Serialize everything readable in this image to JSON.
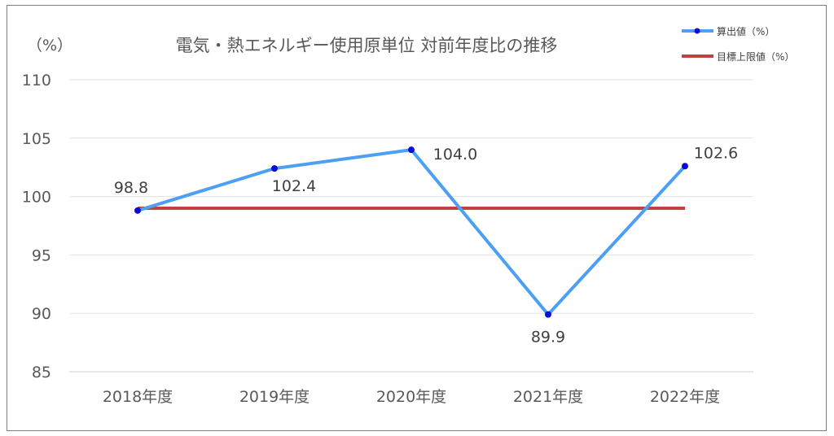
{
  "chart_data": {
    "type": "line",
    "title": "電気・熱エネルギー使用原単位 対前年度比の推移",
    "ylabel": "（%）",
    "categories": [
      "2018年度",
      "2019年度",
      "2020年度",
      "2021年度",
      "2022年度"
    ],
    "series": [
      {
        "name": "算出値（%）",
        "values": [
          98.8,
          102.4,
          104.0,
          89.9,
          102.6
        ],
        "labels": [
          "98.8",
          "102.4",
          "104.0",
          "89.9",
          "102.6"
        ],
        "color": "#4c9ff2",
        "marker_color": "#0b0bd6"
      },
      {
        "name": "目標上限値（%）",
        "values": [
          99,
          99,
          99,
          99,
          99
        ],
        "color": "#c0423e"
      }
    ],
    "ylim": [
      85,
      110
    ],
    "yticks": [
      85,
      90,
      95,
      100,
      105,
      110
    ],
    "grid": true,
    "legend": "top-right"
  }
}
